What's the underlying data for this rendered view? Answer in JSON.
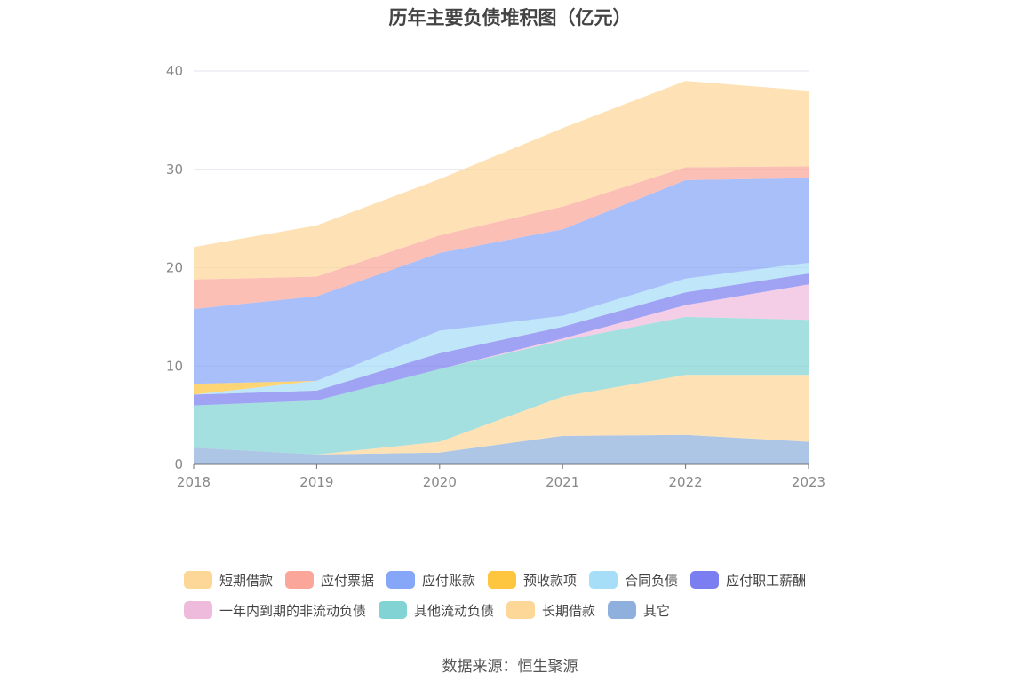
{
  "source_note": "数据来源：恒生聚源",
  "chart_data": {
    "type": "area",
    "title": "历年主要负债堆积图（亿元）",
    "x": [
      "2018",
      "2019",
      "2020",
      "2021",
      "2022",
      "2023"
    ],
    "ylim": [
      0,
      40
    ],
    "yticks": [
      0,
      10,
      20,
      30,
      40
    ],
    "grid": true,
    "stacked": true,
    "legend_position": "bottom",
    "series": [
      {
        "name": "其它",
        "color": "#8fb0dc",
        "values": [
          1.7,
          1.0,
          1.2,
          2.9,
          3.0,
          2.3
        ]
      },
      {
        "name": "长期借款",
        "color": "#fdd798",
        "values": [
          0.0,
          0.0,
          1.1,
          4.0,
          6.1,
          6.8
        ]
      },
      {
        "name": "其他流动负债",
        "color": "#82d4d4",
        "values": [
          4.3,
          5.5,
          7.4,
          5.7,
          5.9,
          5.6
        ]
      },
      {
        "name": "一年内到期的非流动负债",
        "color": "#eebbdc",
        "values": [
          0.0,
          0.0,
          0.0,
          0.2,
          1.2,
          3.6
        ]
      },
      {
        "name": "应付职工薪酬",
        "color": "#7b7ef0",
        "values": [
          1.1,
          1.0,
          1.6,
          1.2,
          1.3,
          1.1
        ]
      },
      {
        "name": "合同负债",
        "color": "#a6ddf7",
        "values": [
          0.0,
          1.0,
          2.3,
          1.1,
          1.4,
          1.1
        ]
      },
      {
        "name": "预收款项",
        "color": "#fec53f",
        "values": [
          1.1,
          0.0,
          0.0,
          0.0,
          0.0,
          0.0
        ]
      },
      {
        "name": "应付账款",
        "color": "#86a6f8",
        "values": [
          7.6,
          8.6,
          7.9,
          8.8,
          10.0,
          8.6
        ]
      },
      {
        "name": "应付票据",
        "color": "#fba69a",
        "values": [
          3.0,
          2.0,
          1.8,
          2.3,
          1.3,
          1.2
        ]
      },
      {
        "name": "短期借款",
        "color": "#fdd798",
        "values": [
          3.3,
          5.2,
          5.7,
          8.0,
          8.8,
          7.7
        ]
      }
    ]
  },
  "legend_rows": [
    [
      {
        "label": "短期借款",
        "color": "#fdd798"
      },
      {
        "label": "应付票据",
        "color": "#fba69a"
      },
      {
        "label": "应付账款",
        "color": "#86a6f8"
      },
      {
        "label": "预收款项",
        "color": "#fec53f"
      },
      {
        "label": "合同负债",
        "color": "#a6ddf7"
      },
      {
        "label": "应付职工薪酬",
        "color": "#7b7ef0"
      }
    ],
    [
      {
        "label": "一年内到期的非流动负债",
        "color": "#eebbdc"
      },
      {
        "label": "其他流动负债",
        "color": "#82d4d4"
      },
      {
        "label": "长期借款",
        "color": "#fdd798"
      },
      {
        "label": "其它",
        "color": "#8fb0dc"
      }
    ]
  ]
}
